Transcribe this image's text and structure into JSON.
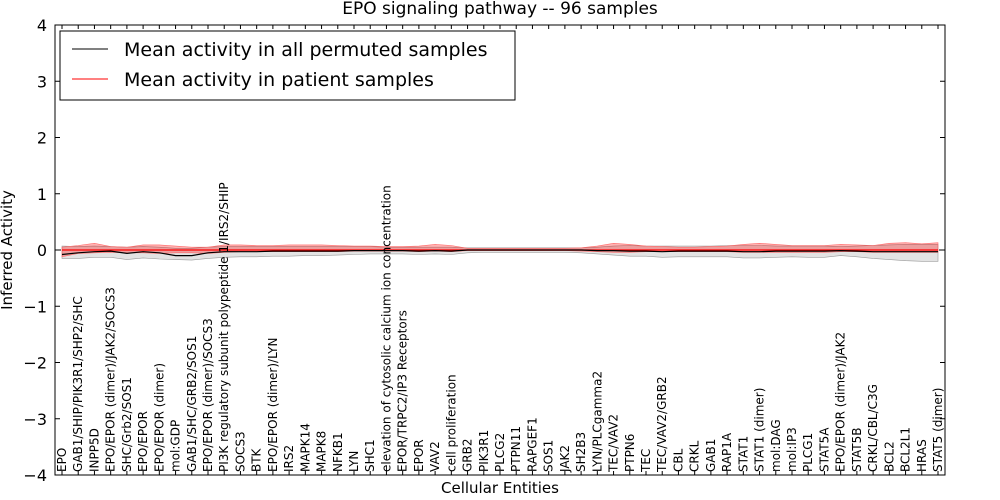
{
  "chart_data": {
    "type": "line",
    "title": "EPO signaling pathway -- 96 samples",
    "xlabel": "Cellular Entities",
    "ylabel": "Inferred Activity",
    "ylim": [
      -4,
      4
    ],
    "yticks": [
      "−4",
      "−3",
      "−2",
      "−1",
      "0",
      "1",
      "2",
      "3",
      "4"
    ],
    "legend_position": "top-left",
    "categories": [
      "EPO",
      "GAB1/SHIP/PIK3R1/SHP2/SHC",
      "INPP5D",
      "EPO/EPOR (dimer)/JAK2/SOCS3",
      "SHC/Grb2/SOS1",
      "EPO/EPOR",
      "EPO/EPOR (dimer)",
      "mol:GDP",
      "GAB1/SHC/GRB2/SOS1",
      "EPO/EPOR (dimer)/SOCS3",
      "PI3K regulatory subunit polypeptide 1/IRS2/SHIP",
      "SOCS3",
      "BTK",
      "EPO/EPOR (dimer)/LYN",
      "IRS2",
      "MAPK14",
      "MAPK8",
      "NFKB1",
      "LYN",
      "SHC1",
      "elevation of cytosolic calcium ion concentration",
      "EPOR/TRPC2/IP3 Receptors",
      "EPOR",
      "VAV2",
      "cell proliferation",
      "GRB2",
      "PIK3R1",
      "PLCG2",
      "PTPN11",
      "RAPGEF1",
      "SOS1",
      "JAK2",
      "SH2B3",
      "LYN/PLCgamma2",
      "TEC/VAV2",
      "PTPN6",
      "TEC",
      "TEC/VAV2/GRB2",
      "CBL",
      "CRKL",
      "GAB1",
      "RAP1A",
      "STAT1",
      "STAT1 (dimer)",
      "mol:DAG",
      "mol:IP3",
      "PLCG1",
      "STAT5A",
      "EPO/EPOR (dimer)/JAK2",
      "STAT5B",
      "CRKL/CBL/C3G",
      "BCL2",
      "BCL2L1",
      "HRAS",
      "STAT5 (dimer)"
    ],
    "series": [
      {
        "name": "Mean activity in all permuted samples",
        "color": "#000000",
        "values": [
          -0.08,
          -0.05,
          -0.03,
          -0.02,
          -0.06,
          -0.03,
          -0.05,
          -0.1,
          -0.1,
          -0.05,
          -0.03,
          -0.03,
          -0.03,
          -0.02,
          -0.02,
          -0.02,
          -0.02,
          -0.02,
          -0.01,
          -0.01,
          -0.01,
          -0.01,
          -0.02,
          -0.01,
          -0.02,
          0.0,
          0.0,
          0.0,
          0.0,
          0.0,
          0.0,
          0.0,
          0.0,
          -0.01,
          -0.01,
          -0.02,
          -0.02,
          -0.03,
          -0.02,
          -0.02,
          -0.02,
          -0.02,
          -0.03,
          -0.03,
          -0.02,
          -0.02,
          -0.02,
          -0.02,
          -0.01,
          -0.02,
          -0.03,
          -0.03,
          -0.03,
          -0.03,
          -0.03
        ],
        "band_low": [
          -0.15,
          -0.15,
          -0.13,
          -0.13,
          -0.17,
          -0.14,
          -0.16,
          -0.17,
          -0.18,
          -0.15,
          -0.13,
          -0.12,
          -0.12,
          -0.11,
          -0.11,
          -0.1,
          -0.1,
          -0.09,
          -0.08,
          -0.07,
          -0.07,
          -0.07,
          -0.08,
          -0.07,
          -0.08,
          -0.05,
          -0.04,
          -0.04,
          -0.04,
          -0.04,
          -0.04,
          -0.04,
          -0.05,
          -0.07,
          -0.09,
          -0.11,
          -0.11,
          -0.13,
          -0.12,
          -0.12,
          -0.12,
          -0.12,
          -0.14,
          -0.14,
          -0.13,
          -0.12,
          -0.13,
          -0.13,
          -0.1,
          -0.12,
          -0.15,
          -0.17,
          -0.19,
          -0.2,
          -0.2
        ],
        "band_high": [
          0.07,
          0.06,
          0.07,
          0.06,
          0.05,
          0.06,
          0.05,
          0.03,
          0.03,
          0.05,
          0.06,
          0.06,
          0.06,
          0.06,
          0.06,
          0.06,
          0.06,
          0.06,
          0.06,
          0.06,
          0.05,
          0.05,
          0.05,
          0.05,
          0.05,
          0.04,
          0.04,
          0.04,
          0.04,
          0.04,
          0.04,
          0.04,
          0.04,
          0.05,
          0.07,
          0.08,
          0.07,
          0.07,
          0.07,
          0.07,
          0.07,
          0.08,
          0.08,
          0.08,
          0.07,
          0.07,
          0.07,
          0.07,
          0.06,
          0.07,
          0.08,
          0.09,
          0.1,
          0.1,
          0.1
        ]
      },
      {
        "name": "Mean activity in patient samples",
        "color": "#ff0000",
        "values": [
          0.0,
          0.0,
          0.0,
          0.0,
          0.0,
          0.0,
          0.0,
          0.0,
          0.0,
          0.0,
          0.0,
          0.0,
          0.0,
          0.0,
          0.0,
          0.0,
          0.0,
          0.0,
          0.0,
          0.0,
          0.0,
          0.0,
          0.0,
          0.0,
          0.0,
          0.0,
          0.0,
          0.0,
          0.0,
          0.0,
          0.0,
          0.0,
          0.0,
          0.0,
          0.0,
          0.0,
          0.0,
          0.0,
          0.0,
          0.0,
          0.0,
          0.0,
          0.0,
          0.0,
          0.0,
          0.0,
          0.0,
          0.0,
          0.0,
          0.0,
          0.0,
          0.0,
          0.0,
          0.0,
          0.0
        ],
        "band_low": [
          -0.12,
          -0.06,
          -0.05,
          -0.04,
          -0.05,
          -0.05,
          -0.06,
          -0.05,
          -0.05,
          -0.06,
          -0.04,
          -0.03,
          -0.03,
          -0.03,
          -0.03,
          -0.03,
          -0.03,
          -0.03,
          -0.02,
          -0.02,
          -0.02,
          -0.02,
          -0.03,
          -0.02,
          -0.03,
          -0.01,
          -0.01,
          -0.01,
          -0.01,
          -0.01,
          -0.01,
          -0.01,
          -0.02,
          -0.03,
          -0.04,
          -0.04,
          -0.03,
          -0.03,
          -0.03,
          -0.03,
          -0.03,
          -0.03,
          -0.04,
          -0.04,
          -0.04,
          -0.04,
          -0.04,
          -0.04,
          -0.03,
          -0.03,
          -0.04,
          -0.04,
          -0.04,
          -0.04,
          -0.04
        ],
        "band_high": [
          0.05,
          0.08,
          0.12,
          0.06,
          0.05,
          0.09,
          0.09,
          0.07,
          0.05,
          0.05,
          0.09,
          0.09,
          0.08,
          0.08,
          0.09,
          0.09,
          0.09,
          0.08,
          0.07,
          0.07,
          0.06,
          0.06,
          0.07,
          0.1,
          0.08,
          0.03,
          0.03,
          0.03,
          0.03,
          0.03,
          0.03,
          0.03,
          0.04,
          0.07,
          0.12,
          0.1,
          0.07,
          0.06,
          0.05,
          0.05,
          0.06,
          0.07,
          0.1,
          0.12,
          0.1,
          0.08,
          0.08,
          0.08,
          0.1,
          0.09,
          0.08,
          0.12,
          0.13,
          0.11,
          0.13
        ]
      }
    ]
  }
}
